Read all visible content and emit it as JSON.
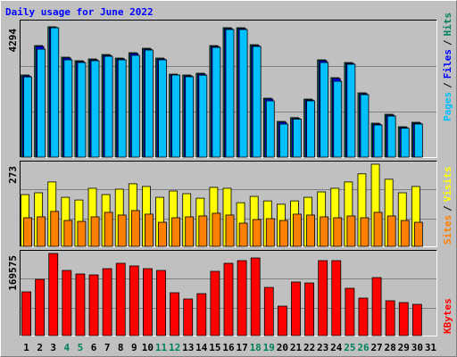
{
  "title": "Daily usage for June 2022",
  "legend_separator": "/",
  "weekend_color": "#00805c",
  "weekend_days": [
    4,
    5,
    11,
    12,
    18,
    19,
    25,
    26
  ],
  "chart_data": [
    {
      "type": "bar",
      "ylim": [
        0,
        4294
      ],
      "yticks": [
        4294
      ],
      "grid": true,
      "series": [
        {
          "name": "Hits",
          "color": "#00805c",
          "values": [
            2705,
            3675,
            4294,
            3293,
            3175,
            3234,
            3381,
            3263,
            3440,
            3587,
            3263,
            2734,
            2705,
            2764,
            3675,
            4264,
            4263,
            3704,
            1940,
            1176,
            1300,
            1911,
            3205,
            2617,
            3116,
            2117,
            1117,
            1411,
            1000,
            1147,
            null
          ]
        },
        {
          "name": "Files",
          "color": "#0000ff",
          "values": [
            2675,
            3645,
            4264,
            3263,
            3145,
            3204,
            3351,
            3233,
            3410,
            3557,
            3233,
            2704,
            2675,
            2734,
            3645,
            4234,
            4233,
            3674,
            1910,
            1146,
            1270,
            1881,
            3175,
            2587,
            3086,
            2087,
            1087,
            1381,
            970,
            1117,
            null
          ]
        },
        {
          "name": "Pages",
          "color": "#00c0ff",
          "values": [
            2640,
            3557,
            4263,
            3205,
            3116,
            3175,
            3322,
            3205,
            3352,
            3528,
            3205,
            2705,
            2646,
            2700,
            3616,
            4205,
            4204,
            3646,
            1852,
            1088,
            1250,
            1852,
            3116,
            2499,
            3058,
            2058,
            1058,
            1352,
            950,
            1090,
            null
          ]
        }
      ]
    },
    {
      "type": "bar",
      "ylim": [
        0,
        273
      ],
      "yticks": [
        273
      ],
      "grid": true,
      "series": [
        {
          "name": "Visits",
          "color": "#ffff00",
          "values": [
            172,
            178,
            214,
            163,
            154,
            193,
            172,
            190,
            208,
            199,
            163,
            184,
            175,
            160,
            196,
            193,
            145,
            166,
            151,
            140,
            151,
            163,
            181,
            193,
            214,
            241,
            273,
            223,
            178,
            199,
            null
          ]
        },
        {
          "name": "Sites",
          "color": "#ff8000",
          "values": [
            95,
            98,
            116,
            86,
            83,
            98,
            113,
            104,
            119,
            107,
            80,
            95,
            98,
            101,
            110,
            104,
            77,
            89,
            92,
            86,
            107,
            104,
            98,
            95,
            101,
            95,
            113,
            101,
            86,
            80,
            null
          ]
        }
      ]
    },
    {
      "type": "bar",
      "ylim": [
        0,
        169575
      ],
      "yticks": [
        169575
      ],
      "grid": true,
      "categories": [
        "1",
        "2",
        "3",
        "4",
        "5",
        "6",
        "7",
        "8",
        "9",
        "10",
        "11",
        "12",
        "13",
        "14",
        "15",
        "16",
        "17",
        "18",
        "19",
        "20",
        "21",
        "22",
        "23",
        "24",
        "25",
        "26",
        "27",
        "28",
        "29",
        "30",
        "31"
      ],
      "series": [
        {
          "name": "KBytes",
          "color": "#ff0000",
          "values": [
            90300,
            116100,
            169575,
            134500,
            127200,
            125300,
            138200,
            149300,
            143800,
            138200,
            134500,
            88500,
            75600,
            86600,
            132700,
            149300,
            154800,
            160300,
            99500,
            60800,
            110600,
            108700,
            154800,
            154800,
            97700,
            77400,
            119800,
            71900,
            68200,
            64500,
            null
          ]
        }
      ]
    }
  ]
}
